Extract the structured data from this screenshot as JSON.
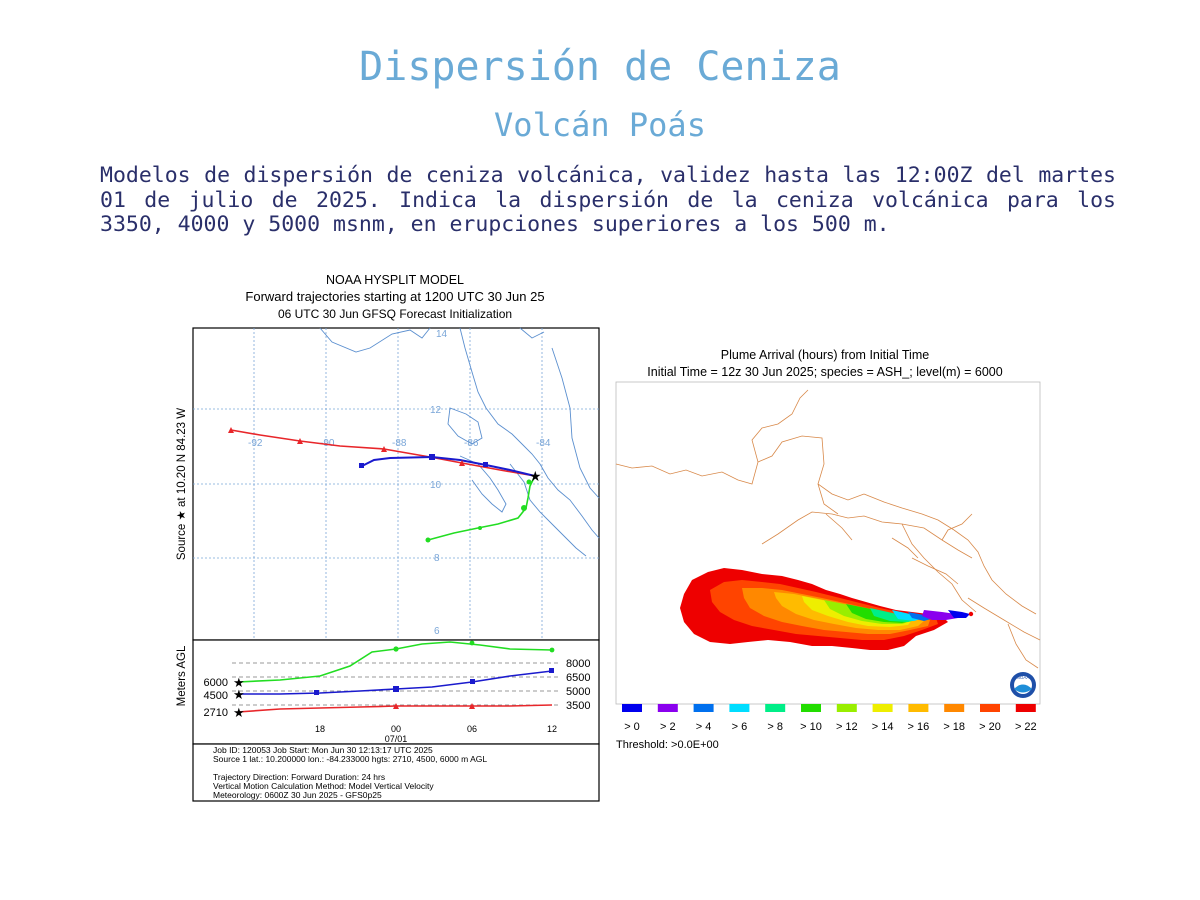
{
  "header": {
    "title": "Dispersión de Ceniza",
    "subtitle": "Volcán Poás",
    "description": "Modelos de dispersión de ceniza volcánica, validez hasta las 12:00Z del martes 01 de julio de 2025. Indica la dispersión de la ceniza volcánica para los 3350, 4000 y 5000 msnm, en erupciones superiores a los 500 m."
  },
  "hysplit": {
    "title_line1": "NOAA HYSPLIT MODEL",
    "title_line2": "Forward trajectories starting at 1200 UTC 30 Jun 25",
    "title_line3": "06 UTC 30 Jun    GFSQ  Forecast Initialization",
    "source_label": "Source ★  at   10.20 N   84.23 W",
    "lat_labels": [
      "14",
      "12",
      "10",
      "8",
      "6"
    ],
    "lon_labels": [
      "-92",
      "-90",
      "-88",
      "-86",
      "-84"
    ],
    "height_axis_label": "Meters AGL",
    "start_heights": [
      "6000",
      "4500",
      "2710"
    ],
    "right_scale": [
      "8000",
      "6500",
      "5000",
      "3500"
    ],
    "time_labels": [
      "18",
      "00",
      "06",
      "12"
    ],
    "date_label": "07/01",
    "job_line1": "Job ID: 120053                    Job Start: Mon Jun 30 12:13:17 UTC 2025",
    "job_line2": "Source 1 lat.: 10.200000  lon.: -84.233000  hgts: 2710, 4500, 6000 m AGL",
    "job_line3": "Trajectory Direction: Forward       Duration: 24 hrs",
    "job_line4": "Vertical Motion Calculation Method:        Model Vertical Velocity",
    "job_line5": "Meteorology: 0600Z 30 Jun 2025 - GFS0p25",
    "colors": {
      "red": "#e8262a",
      "blue": "#1a1acd",
      "green": "#22dd22"
    }
  },
  "plume": {
    "title_line1": "Plume Arrival (hours) from Initial Time",
    "title_line2": "Initial Time = 12z 30 Jun 2025;  species = ASH_;  level(m) =  6000",
    "legend": [
      {
        "label": "> 0",
        "color": "#0000ee"
      },
      {
        "label": "> 2",
        "color": "#8a00ee"
      },
      {
        "label": "> 4",
        "color": "#0070ee"
      },
      {
        "label": "> 6",
        "color": "#00ddff"
      },
      {
        "label": "> 8",
        "color": "#00ee88"
      },
      {
        "label": "> 10",
        "color": "#22dd00"
      },
      {
        "label": "> 12",
        "color": "#99ee00"
      },
      {
        "label": "> 14",
        "color": "#eeee00"
      },
      {
        "label": "> 16",
        "color": "#ffbb00"
      },
      {
        "label": "> 18",
        "color": "#ff8800"
      },
      {
        "label": "> 20",
        "color": "#ff4400"
      },
      {
        "label": "> 22",
        "color": "#ee0000"
      }
    ],
    "threshold": "Threshold: >0.0E+00",
    "logo_text": "NOAA"
  }
}
